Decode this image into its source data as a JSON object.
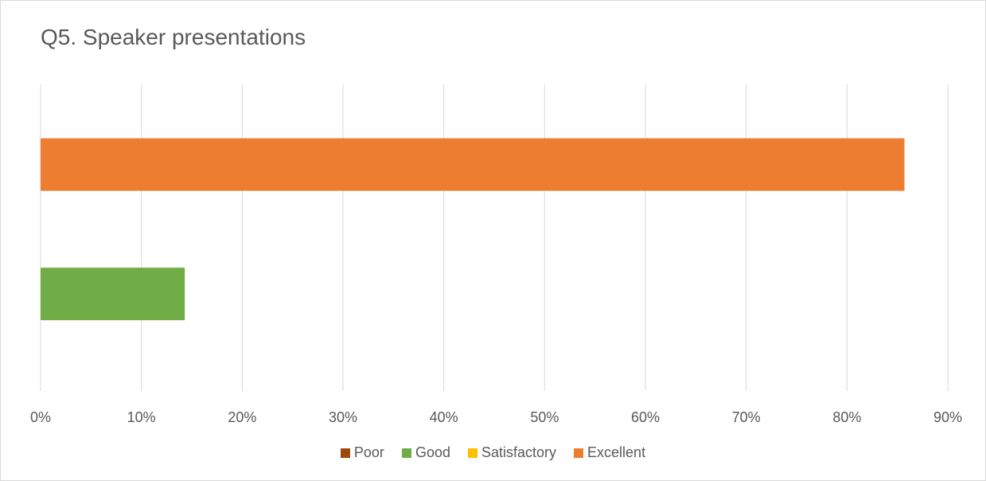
{
  "chart_data": {
    "type": "bar",
    "orientation": "horizontal",
    "title": "Q5. Speaker presentations",
    "xlabel": "",
    "ylabel": "",
    "xlim": [
      0,
      90
    ],
    "x_ticks": [
      "0%",
      "10%",
      "20%",
      "30%",
      "40%",
      "50%",
      "60%",
      "70%",
      "80%",
      "90%"
    ],
    "grid": true,
    "legend_position": "bottom",
    "series": [
      {
        "name": "Poor",
        "color": "#9e480e",
        "value": 0
      },
      {
        "name": "Good",
        "color": "#70ad47",
        "value": 14.3
      },
      {
        "name": "Satisfactory",
        "color": "#ffc000",
        "value": 0
      },
      {
        "name": "Excellent",
        "color": "#ed7d31",
        "value": 85.7
      }
    ]
  }
}
